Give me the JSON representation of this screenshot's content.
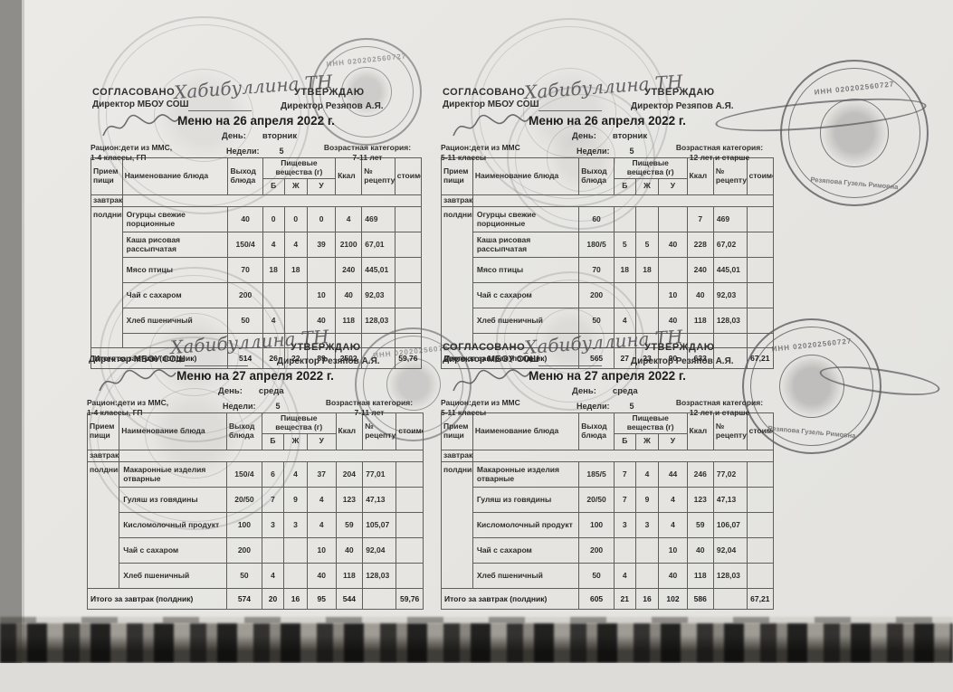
{
  "labels": {
    "agreed": "СОГЛАСОВАНО",
    "approved": "УТВЕРЖДАЮ",
    "director_school": "Директор МБОУ СОШ",
    "director_name": "Директор Резяпов А.Я.",
    "signature": "Хабибуллина ТН",
    "day": "День:",
    "week": "Недели:",
    "age": "Возрастная категория:",
    "breakfast": "завтрак",
    "snack": "полдник",
    "total": "Итого за завтрак (полдник)"
  },
  "columns": {
    "meal": "Прием пищи",
    "dish": "Наименование блюда",
    "out": "Выход блюда",
    "nutr": "Пищевые вещества (г)",
    "b": "Б",
    "zh": "Ж",
    "u": "У",
    "kcal": "Ккал",
    "recipe": "№ рецептуры",
    "cost": "стоимость"
  },
  "menus": [
    {
      "agreed_label": "СОГЛАСОВАНО",
      "title": "Меню на 26 апреля  2022 г.",
      "day": "вторник",
      "ration_line1": "Рацион:дети из ММС,",
      "ration_line2": "1-4 классы, ГП",
      "week": "5",
      "age": "7-11 лет",
      "empty_row": true,
      "rows": [
        [
          "Огурцы свежие порционные",
          "40",
          "0",
          "0",
          "0",
          "4",
          "469",
          ""
        ],
        [
          "Каша рисовая рассыпчатая",
          "150/4",
          "4",
          "4",
          "39",
          "2100",
          "67,01",
          ""
        ],
        [
          "Мясо птицы",
          "70",
          "18",
          "18",
          "",
          "240",
          "445,01",
          ""
        ],
        [
          "Чай с сахаром",
          "200",
          "",
          "",
          "10",
          "40",
          "92,03",
          ""
        ],
        [
          "Хлеб пшеничный",
          "50",
          "4",
          "",
          "40",
          "118",
          "128,03",
          ""
        ]
      ],
      "totals": [
        "514",
        "26",
        "22",
        "89",
        "2502",
        "",
        "59,76"
      ]
    },
    {
      "agreed_label": "СОГЛАСОВАНО",
      "title": "Меню на 26 апреля  2022 г.",
      "day": "вторник",
      "ration_line1": "Рацион:дети из ММС",
      "ration_line2": "5-11 классы",
      "week": "5",
      "age": "12 лет и старше",
      "empty_row": true,
      "rows": [
        [
          "Огурцы свежие порционные",
          "60",
          "",
          "",
          "",
          "7",
          "469",
          ""
        ],
        [
          "Каша рисовая рассыпчатая",
          "180/5",
          "5",
          "5",
          "40",
          "228",
          "67,02",
          ""
        ],
        [
          "Мясо птицы",
          "70",
          "18",
          "18",
          "",
          "240",
          "445,01",
          ""
        ],
        [
          "Чай с сахаром",
          "200",
          "",
          "",
          "10",
          "40",
          "92,03",
          ""
        ],
        [
          "Хлеб пшеничный",
          "50",
          "4",
          "",
          "40",
          "118",
          "128,03",
          ""
        ]
      ],
      "totals": [
        "565",
        "27",
        "23",
        "90",
        "633",
        "",
        "67,21"
      ]
    },
    {
      "agreed_label": "",
      "title": "Меню на 27 апреля  2022 г.",
      "day": "среда",
      "ration_line1": "Рацион:дети из ММС,",
      "ration_line2": "1-4 классы, ГП",
      "week": "5",
      "age": "7-11 лет",
      "empty_row": false,
      "rows": [
        [
          "Макаронные изделия отварные",
          "150/4",
          "6",
          "4",
          "37",
          "204",
          "77,01",
          ""
        ],
        [
          "Гуляш из  говядины",
          "20/50",
          "7",
          "9",
          "4",
          "123",
          "47,13",
          ""
        ],
        [
          "Кисломолочный продукт",
          "100",
          "3",
          "3",
          "4",
          "59",
          "105,07",
          ""
        ],
        [
          "Чай с сахаром",
          "200",
          "",
          "",
          "10",
          "40",
          "92,04",
          ""
        ],
        [
          "Хлеб пшеничный",
          "50",
          "4",
          "",
          "40",
          "118",
          "128,03",
          ""
        ]
      ],
      "totals": [
        "574",
        "20",
        "16",
        "95",
        "544",
        "",
        "59,76"
      ]
    },
    {
      "agreed_label": "СОГЛАСОВАНО",
      "title": "Меню на 27 апреля  2022 г.",
      "day": "среда",
      "ration_line1": "Рацион:дети из ММС",
      "ration_line2": "5-11 классы",
      "week": "5",
      "age": "12 лет и старше",
      "empty_row": false,
      "rows": [
        [
          "Макаронные изделия отварные",
          "185/5",
          "7",
          "4",
          "44",
          "246",
          "77,02",
          ""
        ],
        [
          "Гуляш из  говядины",
          "20/50",
          "7",
          "9",
          "4",
          "123",
          "47,13",
          ""
        ],
        [
          "Кисломолочный продукт",
          "100",
          "3",
          "3",
          "4",
          "59",
          "106,07",
          ""
        ],
        [
          "Чай с сахаром",
          "200",
          "",
          "",
          "10",
          "40",
          "92,04",
          ""
        ],
        [
          "Хлеб пшеничный",
          "50",
          "4",
          "",
          "40",
          "118",
          "128,03",
          ""
        ]
      ],
      "totals": [
        "605",
        "21",
        "16",
        "102",
        "586",
        "",
        "67,21"
      ]
    }
  ],
  "stamps": {
    "inn": "ИНН 020202560727",
    "owner": "Резяпова Гузель Римовна"
  }
}
